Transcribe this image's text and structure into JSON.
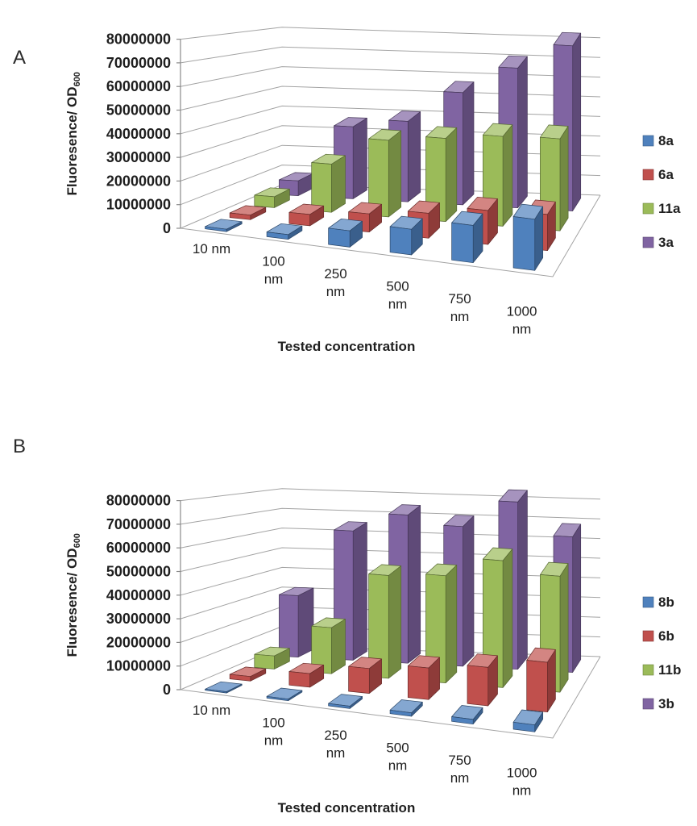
{
  "page": {
    "background": "#ffffff"
  },
  "panels": [
    {
      "label": "A",
      "chart_data": {
        "type": "bar",
        "style": "3d-column",
        "title": "",
        "categories": [
          "10 nm",
          "100 nm",
          "250 nm",
          "500 nm",
          "750 nm",
          "1000 nm"
        ],
        "series": [
          {
            "name": "8a",
            "color": "#4F81BD",
            "values": [
              1000000,
              2000000,
              7000000,
              11000000,
              16000000,
              22000000
            ]
          },
          {
            "name": "6a",
            "color": "#C0504D",
            "values": [
              2000000,
              5000000,
              8000000,
              11000000,
              15000000,
              16000000
            ]
          },
          {
            "name": "11a",
            "color": "#9BBB59",
            "values": [
              5000000,
              22000000,
              35000000,
              38000000,
              41000000,
              42000000
            ]
          },
          {
            "name": "3a",
            "color": "#8064A2",
            "values": [
              7000000,
              34000000,
              38000000,
              53000000,
              66000000,
              78000000
            ]
          }
        ],
        "xlabel": "Tested concentration",
        "ylabel": "Fluoresence/ OD",
        "ylabel_subscript": "600",
        "ylim": [
          0,
          80000000
        ],
        "ytick_step": 10000000,
        "ytick_labels": [
          "0",
          "10000000",
          "20000000",
          "30000000",
          "40000000",
          "50000000",
          "60000000",
          "70000000",
          "80000000"
        ],
        "legend_position": "right",
        "grid": true
      }
    },
    {
      "label": "B",
      "chart_data": {
        "type": "bar",
        "style": "3d-column",
        "title": "",
        "categories": [
          "10 nm",
          "100 nm",
          "250 nm",
          "500 nm",
          "750 nm",
          "1000 nm"
        ],
        "series": [
          {
            "name": "8b",
            "color": "#4F81BD",
            "values": [
              500000,
              700000,
              1000000,
              1500000,
              2000000,
              3000000
            ]
          },
          {
            "name": "6b",
            "color": "#C0504D",
            "values": [
              2000000,
              6000000,
              11000000,
              14000000,
              17000000,
              22000000
            ]
          },
          {
            "name": "11b",
            "color": "#9BBB59",
            "values": [
              6000000,
              21000000,
              47000000,
              49000000,
              58000000,
              53000000
            ]
          },
          {
            "name": "3b",
            "color": "#8064A2",
            "values": [
              29000000,
              61000000,
              70000000,
              66000000,
              79000000,
              64000000
            ]
          }
        ],
        "xlabel": "Tested concentration",
        "ylabel": "Fluoresence/ OD",
        "ylabel_subscript": "600",
        "ylim": [
          0,
          80000000
        ],
        "ytick_step": 10000000,
        "ytick_labels": [
          "0",
          "10000000",
          "20000000",
          "30000000",
          "40000000",
          "50000000",
          "60000000",
          "70000000",
          "80000000"
        ],
        "legend_position": "right",
        "grid": true
      }
    }
  ]
}
